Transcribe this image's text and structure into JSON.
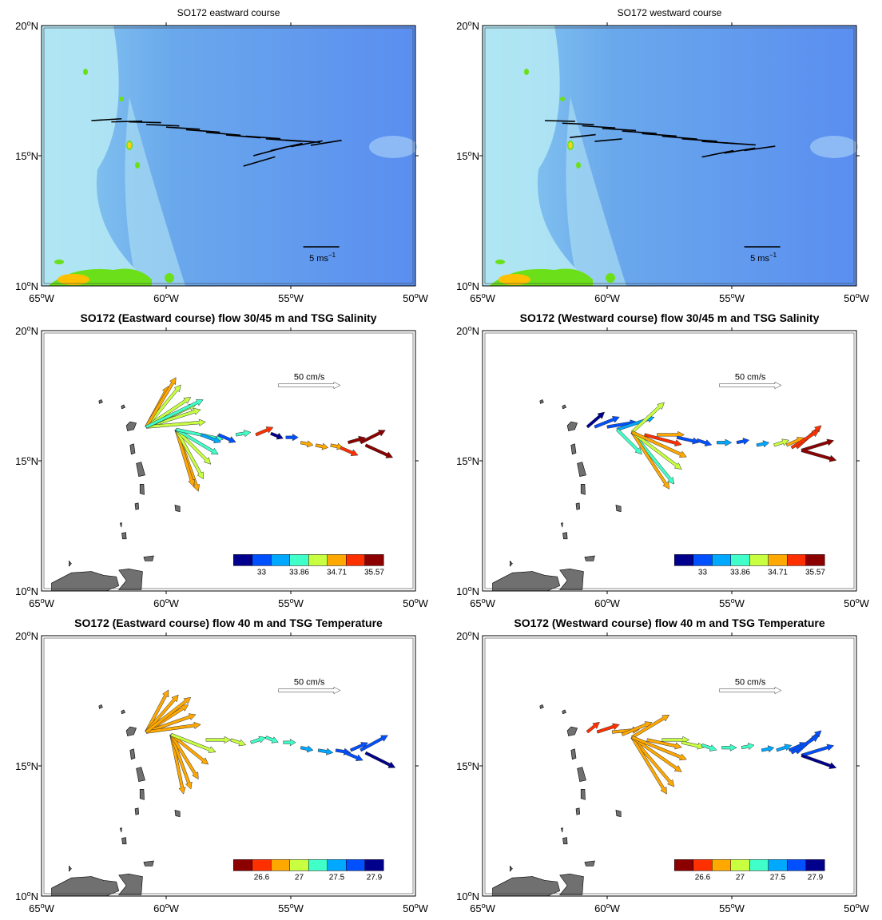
{
  "figure": {
    "lon_labels": [
      "65°W",
      "60°W",
      "55°W",
      "50°W"
    ],
    "lat_labels": [
      "10°N",
      "15°N",
      "20°N"
    ],
    "lon_range": [
      -65,
      -50
    ],
    "lat_range": [
      10,
      20
    ]
  },
  "chart_data": [
    {
      "type": "map-vectors",
      "title": "SO172 eastward course",
      "variable": "wind",
      "reference": {
        "label": "5 ms⁻¹",
        "speed": 5
      },
      "background": "bathymetry",
      "xlim": [
        -65,
        -50
      ],
      "ylim": [
        10,
        20
      ],
      "vectors": [
        {
          "lon": -63.0,
          "lat": 16.35,
          "u": 4.2,
          "v": 0.25
        },
        {
          "lon": -62.2,
          "lat": 16.3,
          "u": 4.3,
          "v": 0.1
        },
        {
          "lon": -61.5,
          "lat": 16.3,
          "u": 4.5,
          "v": -0.1
        },
        {
          "lon": -60.8,
          "lat": 16.2,
          "u": 4.6,
          "v": -0.2
        },
        {
          "lon": -60.0,
          "lat": 16.1,
          "u": 4.7,
          "v": -0.3
        },
        {
          "lon": -59.2,
          "lat": 16.0,
          "u": 4.7,
          "v": -0.35
        },
        {
          "lon": -58.4,
          "lat": 15.9,
          "u": 4.8,
          "v": -0.4
        },
        {
          "lon": -57.6,
          "lat": 15.8,
          "u": 4.8,
          "v": -0.4
        },
        {
          "lon": -56.8,
          "lat": 15.75,
          "u": 4.8,
          "v": -0.35
        },
        {
          "lon": -56.0,
          "lat": 15.65,
          "u": 4.9,
          "v": -0.35
        },
        {
          "lon": -55.2,
          "lat": 15.6,
          "u": 4.8,
          "v": -0.3
        },
        {
          "lon": -56.5,
          "lat": 15.0,
          "u": 4.5,
          "v": 1.2
        },
        {
          "lon": -55.8,
          "lat": 15.2,
          "u": 4.4,
          "v": 1.0
        },
        {
          "lon": -55.0,
          "lat": 15.35,
          "u": 4.4,
          "v": 0.8
        },
        {
          "lon": -54.2,
          "lat": 15.4,
          "u": 4.3,
          "v": 0.7
        },
        {
          "lon": -56.9,
          "lat": 14.6,
          "u": 4.4,
          "v": 1.3
        }
      ]
    },
    {
      "type": "map-vectors",
      "title": "SO172 westward course",
      "variable": "wind",
      "reference": {
        "label": "5 ms⁻¹",
        "speed": 5
      },
      "background": "bathymetry",
      "xlim": [
        -65,
        -50
      ],
      "ylim": [
        10,
        20
      ],
      "vectors": [
        {
          "lon": -62.5,
          "lat": 16.35,
          "u": 4.2,
          "v": -0.1
        },
        {
          "lon": -61.8,
          "lat": 16.25,
          "u": 4.4,
          "v": -0.2
        },
        {
          "lon": -61.0,
          "lat": 16.15,
          "u": 4.6,
          "v": -0.3
        },
        {
          "lon": -60.2,
          "lat": 16.05,
          "u": 4.7,
          "v": -0.3
        },
        {
          "lon": -59.4,
          "lat": 15.95,
          "u": 4.8,
          "v": -0.35
        },
        {
          "lon": -58.6,
          "lat": 15.85,
          "u": 4.8,
          "v": -0.35
        },
        {
          "lon": -57.8,
          "lat": 15.75,
          "u": 4.9,
          "v": -0.4
        },
        {
          "lon": -57.0,
          "lat": 15.65,
          "u": 4.9,
          "v": -0.35
        },
        {
          "lon": -56.2,
          "lat": 15.55,
          "u": 4.8,
          "v": -0.3
        },
        {
          "lon": -55.4,
          "lat": 15.5,
          "u": 4.7,
          "v": -0.3
        },
        {
          "lon": -56.2,
          "lat": 14.95,
          "u": 4.4,
          "v": 0.9
        },
        {
          "lon": -55.3,
          "lat": 15.1,
          "u": 4.3,
          "v": 0.7
        },
        {
          "lon": -54.5,
          "lat": 15.2,
          "u": 4.3,
          "v": 0.6
        },
        {
          "lon": -61.5,
          "lat": 15.7,
          "u": 3.6,
          "v": 0.4
        },
        {
          "lon": -60.5,
          "lat": 15.55,
          "u": 3.8,
          "v": 0.35
        }
      ]
    },
    {
      "type": "map-vectors",
      "title": "SO172 (Eastward course) flow 30/45 m and TSG Salinity",
      "variable": "salinity",
      "reference": {
        "label": "50 cm/s",
        "speed": 50
      },
      "colorbar": {
        "colors": [
          "#00008c",
          "#0050ff",
          "#00a8ff",
          "#40ffc8",
          "#c8ff40",
          "#ffa800",
          "#ff3000",
          "#8c0000"
        ],
        "labels": [
          "33",
          "33.86",
          "34.71",
          "35.57"
        ],
        "label_positions": [
          1.5,
          3.5,
          5.5,
          7.5
        ]
      },
      "xlim": [
        -65,
        -50
      ],
      "ylim": [
        10,
        20
      ],
      "vectors": [
        {
          "lon": -60.8,
          "lat": 16.3,
          "u": 18,
          "v": 33,
          "c": 5
        },
        {
          "lon": -60.8,
          "lat": 16.3,
          "u": 28,
          "v": 34,
          "c": 4
        },
        {
          "lon": -60.8,
          "lat": 16.3,
          "u": 36,
          "v": 24,
          "c": 4
        },
        {
          "lon": -60.8,
          "lat": 16.3,
          "u": 44,
          "v": 14,
          "c": 4
        },
        {
          "lon": -60.8,
          "lat": 16.3,
          "u": 48,
          "v": 4,
          "c": 4
        },
        {
          "lon": -60.8,
          "lat": 16.3,
          "u": 40,
          "v": 18,
          "c": 4
        },
        {
          "lon": -60.8,
          "lat": 16.3,
          "u": 24,
          "v": 40,
          "c": 5
        },
        {
          "lon": -60.8,
          "lat": 16.3,
          "u": 46,
          "v": 22,
          "c": 3
        },
        {
          "lon": -59.6,
          "lat": 16.2,
          "u": 18,
          "v": -50,
          "c": 5
        },
        {
          "lon": -59.6,
          "lat": 16.2,
          "u": 14,
          "v": -46,
          "c": 5
        },
        {
          "lon": -59.6,
          "lat": 16.2,
          "u": 22,
          "v": -40,
          "c": 4
        },
        {
          "lon": -59.6,
          "lat": 16.2,
          "u": 28,
          "v": -28,
          "c": 4
        },
        {
          "lon": -59.6,
          "lat": 16.2,
          "u": 34,
          "v": -20,
          "c": 3
        },
        {
          "lon": -59.6,
          "lat": 16.2,
          "u": 38,
          "v": -8,
          "c": 3
        },
        {
          "lon": -58.6,
          "lat": 16.0,
          "u": 16,
          "v": -6,
          "c": 2
        },
        {
          "lon": -57.9,
          "lat": 16.0,
          "u": 14,
          "v": -6,
          "c": 1
        },
        {
          "lon": -57.2,
          "lat": 16.0,
          "u": 12,
          "v": 2,
          "c": 3
        },
        {
          "lon": -56.4,
          "lat": 16.0,
          "u": 14,
          "v": 6,
          "c": 6
        },
        {
          "lon": -55.8,
          "lat": 16.05,
          "u": 10,
          "v": -4,
          "c": 0
        },
        {
          "lon": -55.2,
          "lat": 15.9,
          "u": 10,
          "v": 0,
          "c": 1
        },
        {
          "lon": -54.6,
          "lat": 15.7,
          "u": 10,
          "v": -2,
          "c": 5
        },
        {
          "lon": -54.0,
          "lat": 15.6,
          "u": 10,
          "v": -2,
          "c": 5
        },
        {
          "lon": -53.4,
          "lat": 15.6,
          "u": 10,
          "v": -2,
          "c": 5
        },
        {
          "lon": -52.7,
          "lat": 15.7,
          "u": 14,
          "v": 4,
          "c": 7
        },
        {
          "lon": -52.2,
          "lat": 15.7,
          "u": 20,
          "v": 10,
          "c": 7
        },
        {
          "lon": -52.0,
          "lat": 15.6,
          "u": 22,
          "v": -10,
          "c": 7
        },
        {
          "lon": -53.0,
          "lat": 15.5,
          "u": 14,
          "v": -6,
          "c": 6
        }
      ]
    },
    {
      "type": "map-vectors",
      "title": "SO172 (Westward course) flow 30/45 m and TSG Salinity",
      "variable": "salinity",
      "reference": {
        "label": "50 cm/s",
        "speed": 50
      },
      "colorbar": {
        "colors": [
          "#00008c",
          "#0050ff",
          "#00a8ff",
          "#40ffc8",
          "#c8ff40",
          "#ffa800",
          "#ff3000",
          "#8c0000"
        ],
        "labels": [
          "33",
          "33.86",
          "34.71",
          "35.57"
        ],
        "label_positions": [
          1.5,
          3.5,
          5.5,
          7.5
        ]
      },
      "xlim": [
        -65,
        -50
      ],
      "ylim": [
        10,
        20
      ],
      "vectors": [
        {
          "lon": -60.8,
          "lat": 16.3,
          "u": 14,
          "v": 12,
          "c": 0
        },
        {
          "lon": -60.5,
          "lat": 16.3,
          "u": 20,
          "v": 8,
          "c": 1
        },
        {
          "lon": -60.0,
          "lat": 16.3,
          "u": 24,
          "v": 4,
          "c": 1
        },
        {
          "lon": -59.6,
          "lat": 16.2,
          "u": 30,
          "v": 10,
          "c": 2
        },
        {
          "lon": -59.6,
          "lat": 16.2,
          "u": 20,
          "v": -20,
          "c": 3
        },
        {
          "lon": -59.0,
          "lat": 16.1,
          "u": 26,
          "v": 24,
          "c": 4
        },
        {
          "lon": -59.0,
          "lat": 16.1,
          "u": 34,
          "v": -42,
          "c": 3
        },
        {
          "lon": -59.0,
          "lat": 16.1,
          "u": 30,
          "v": -46,
          "c": 5
        },
        {
          "lon": -59.0,
          "lat": 16.1,
          "u": 40,
          "v": -30,
          "c": 4
        },
        {
          "lon": -59.0,
          "lat": 16.1,
          "u": 44,
          "v": -20,
          "c": 5
        },
        {
          "lon": -58.5,
          "lat": 16.0,
          "u": 30,
          "v": -8,
          "c": 6
        },
        {
          "lon": -58.0,
          "lat": 16.0,
          "u": 22,
          "v": 0,
          "c": 5
        },
        {
          "lon": -57.2,
          "lat": 15.9,
          "u": 18,
          "v": -4,
          "c": 1
        },
        {
          "lon": -56.4,
          "lat": 15.8,
          "u": 12,
          "v": -4,
          "c": 1
        },
        {
          "lon": -55.6,
          "lat": 15.7,
          "u": 12,
          "v": 0,
          "c": 2
        },
        {
          "lon": -54.8,
          "lat": 15.7,
          "u": 10,
          "v": 2,
          "c": 1
        },
        {
          "lon": -54.0,
          "lat": 15.6,
          "u": 10,
          "v": 2,
          "c": 2
        },
        {
          "lon": -53.3,
          "lat": 15.6,
          "u": 12,
          "v": 4,
          "c": 4
        },
        {
          "lon": -52.8,
          "lat": 15.6,
          "u": 14,
          "v": 6,
          "c": 5
        },
        {
          "lon": -52.4,
          "lat": 15.5,
          "u": 20,
          "v": 18,
          "c": 6
        },
        {
          "lon": -52.2,
          "lat": 15.4,
          "u": 26,
          "v": 8,
          "c": 7
        },
        {
          "lon": -52.2,
          "lat": 15.4,
          "u": 28,
          "v": -8,
          "c": 7
        },
        {
          "lon": -52.6,
          "lat": 15.5,
          "u": 22,
          "v": 14,
          "c": 6
        }
      ]
    },
    {
      "type": "map-vectors",
      "title": "SO172 (Eastward course) flow 40 m and TSG Temperature",
      "variable": "temperature",
      "reference": {
        "label": "50 cm/s",
        "speed": 50
      },
      "colorbar": {
        "colors": [
          "#8c0000",
          "#ff3000",
          "#ffa800",
          "#c8ff40",
          "#40ffc8",
          "#00a8ff",
          "#0050ff",
          "#00008c"
        ],
        "labels": [
          "26.6",
          "27",
          "27.5",
          "27.9"
        ],
        "label_positions": [
          1.5,
          3.5,
          5.5,
          7.5
        ]
      },
      "xlim": [
        -65,
        -50
      ],
      "ylim": [
        10,
        20
      ],
      "vectors": [
        {
          "lon": -60.8,
          "lat": 16.3,
          "u": 18,
          "v": 34,
          "c": 2
        },
        {
          "lon": -60.8,
          "lat": 16.3,
          "u": 26,
          "v": 30,
          "c": 2
        },
        {
          "lon": -60.8,
          "lat": 16.3,
          "u": 34,
          "v": 22,
          "c": 2
        },
        {
          "lon": -60.8,
          "lat": 16.3,
          "u": 40,
          "v": 14,
          "c": 2
        },
        {
          "lon": -60.8,
          "lat": 16.3,
          "u": 44,
          "v": 6,
          "c": 2
        },
        {
          "lon": -60.8,
          "lat": 16.3,
          "u": 36,
          "v": 28,
          "c": 2
        },
        {
          "lon": -59.8,
          "lat": 16.2,
          "u": 10,
          "v": -48,
          "c": 2
        },
        {
          "lon": -59.8,
          "lat": 16.2,
          "u": 16,
          "v": -44,
          "c": 2
        },
        {
          "lon": -59.8,
          "lat": 16.2,
          "u": 22,
          "v": -36,
          "c": 2
        },
        {
          "lon": -59.8,
          "lat": 16.2,
          "u": 30,
          "v": -24,
          "c": 2
        },
        {
          "lon": -59.8,
          "lat": 16.2,
          "u": 36,
          "v": -14,
          "c": 3
        },
        {
          "lon": -58.4,
          "lat": 16.0,
          "u": 20,
          "v": 0,
          "c": 3
        },
        {
          "lon": -57.4,
          "lat": 16.0,
          "u": 12,
          "v": -4,
          "c": 3
        },
        {
          "lon": -56.6,
          "lat": 15.9,
          "u": 12,
          "v": 4,
          "c": 4
        },
        {
          "lon": -56.0,
          "lat": 16.1,
          "u": 10,
          "v": -4,
          "c": 4
        },
        {
          "lon": -55.3,
          "lat": 15.9,
          "u": 10,
          "v": 0,
          "c": 4
        },
        {
          "lon": -54.6,
          "lat": 15.7,
          "u": 10,
          "v": -2,
          "c": 5
        },
        {
          "lon": -53.9,
          "lat": 15.6,
          "u": 12,
          "v": -2,
          "c": 5
        },
        {
          "lon": -53.2,
          "lat": 15.6,
          "u": 12,
          "v": -2,
          "c": 6
        },
        {
          "lon": -52.6,
          "lat": 15.6,
          "u": 14,
          "v": 6,
          "c": 6
        },
        {
          "lon": -52.2,
          "lat": 15.6,
          "u": 22,
          "v": 12,
          "c": 6
        },
        {
          "lon": -52.0,
          "lat": 15.5,
          "u": 24,
          "v": -12,
          "c": 7
        },
        {
          "lon": -52.8,
          "lat": 15.5,
          "u": 14,
          "v": -6,
          "c": 6
        }
      ]
    },
    {
      "type": "map-vectors",
      "title": "SO172 (Westward course) flow 40 m and TSG Temperature",
      "variable": "temperature",
      "reference": {
        "label": "50 cm/s",
        "speed": 50
      },
      "colorbar": {
        "colors": [
          "#8c0000",
          "#ff3000",
          "#ffa800",
          "#c8ff40",
          "#40ffc8",
          "#00a8ff",
          "#0050ff",
          "#00008c"
        ],
        "labels": [
          "26.6",
          "27",
          "27.5",
          "27.9"
        ],
        "label_positions": [
          1.5,
          3.5,
          5.5,
          7.5
        ]
      },
      "xlim": [
        -65,
        -50
      ],
      "ylim": [
        10,
        20
      ],
      "vectors": [
        {
          "lon": -60.8,
          "lat": 16.3,
          "u": 10,
          "v": 8,
          "c": 1
        },
        {
          "lon": -60.4,
          "lat": 16.3,
          "u": 18,
          "v": 6,
          "c": 1
        },
        {
          "lon": -59.8,
          "lat": 16.3,
          "u": 22,
          "v": 2,
          "c": 2
        },
        {
          "lon": -59.4,
          "lat": 16.2,
          "u": 24,
          "v": 10,
          "c": 2
        },
        {
          "lon": -59.0,
          "lat": 16.1,
          "u": 30,
          "v": 18,
          "c": 2
        },
        {
          "lon": -59.0,
          "lat": 16.1,
          "u": 34,
          "v": -40,
          "c": 2
        },
        {
          "lon": -59.0,
          "lat": 16.1,
          "u": 28,
          "v": -46,
          "c": 2
        },
        {
          "lon": -59.0,
          "lat": 16.1,
          "u": 40,
          "v": -28,
          "c": 2
        },
        {
          "lon": -59.0,
          "lat": 16.1,
          "u": 44,
          "v": -18,
          "c": 2
        },
        {
          "lon": -58.4,
          "lat": 16.0,
          "u": 28,
          "v": -6,
          "c": 2
        },
        {
          "lon": -57.8,
          "lat": 16.0,
          "u": 22,
          "v": 0,
          "c": 3
        },
        {
          "lon": -57.0,
          "lat": 15.9,
          "u": 18,
          "v": -4,
          "c": 3
        },
        {
          "lon": -56.2,
          "lat": 15.8,
          "u": 12,
          "v": -4,
          "c": 4
        },
        {
          "lon": -55.4,
          "lat": 15.7,
          "u": 12,
          "v": 0,
          "c": 4
        },
        {
          "lon": -54.6,
          "lat": 15.7,
          "u": 10,
          "v": 2,
          "c": 4
        },
        {
          "lon": -53.8,
          "lat": 15.6,
          "u": 10,
          "v": 2,
          "c": 5
        },
        {
          "lon": -53.2,
          "lat": 15.6,
          "u": 12,
          "v": 4,
          "c": 5
        },
        {
          "lon": -52.7,
          "lat": 15.6,
          "u": 14,
          "v": 6,
          "c": 6
        },
        {
          "lon": -52.4,
          "lat": 15.5,
          "u": 20,
          "v": 18,
          "c": 6
        },
        {
          "lon": -52.2,
          "lat": 15.4,
          "u": 26,
          "v": 8,
          "c": 6
        },
        {
          "lon": -52.2,
          "lat": 15.4,
          "u": 28,
          "v": -10,
          "c": 7
        },
        {
          "lon": -52.6,
          "lat": 15.5,
          "u": 22,
          "v": 14,
          "c": 6
        }
      ]
    }
  ]
}
